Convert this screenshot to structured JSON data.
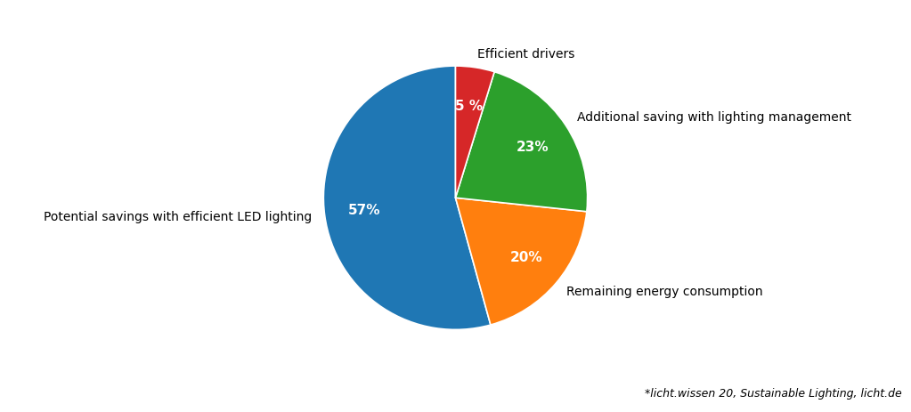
{
  "chart_data": {
    "type": "pie",
    "categories": [
      "Potential savings with efficient LED lighting",
      "Remaining energy consumption",
      "Additional saving with lighting management",
      "Efficient drivers"
    ],
    "values": [
      57,
      20,
      23,
      5
    ],
    "value_labels": [
      "57%",
      "20%",
      "23%",
      "5 %"
    ],
    "data_labels": true,
    "annotations": [
      "*licht.wissen 20, Sustainable Lighting, licht.de"
    ]
  }
}
